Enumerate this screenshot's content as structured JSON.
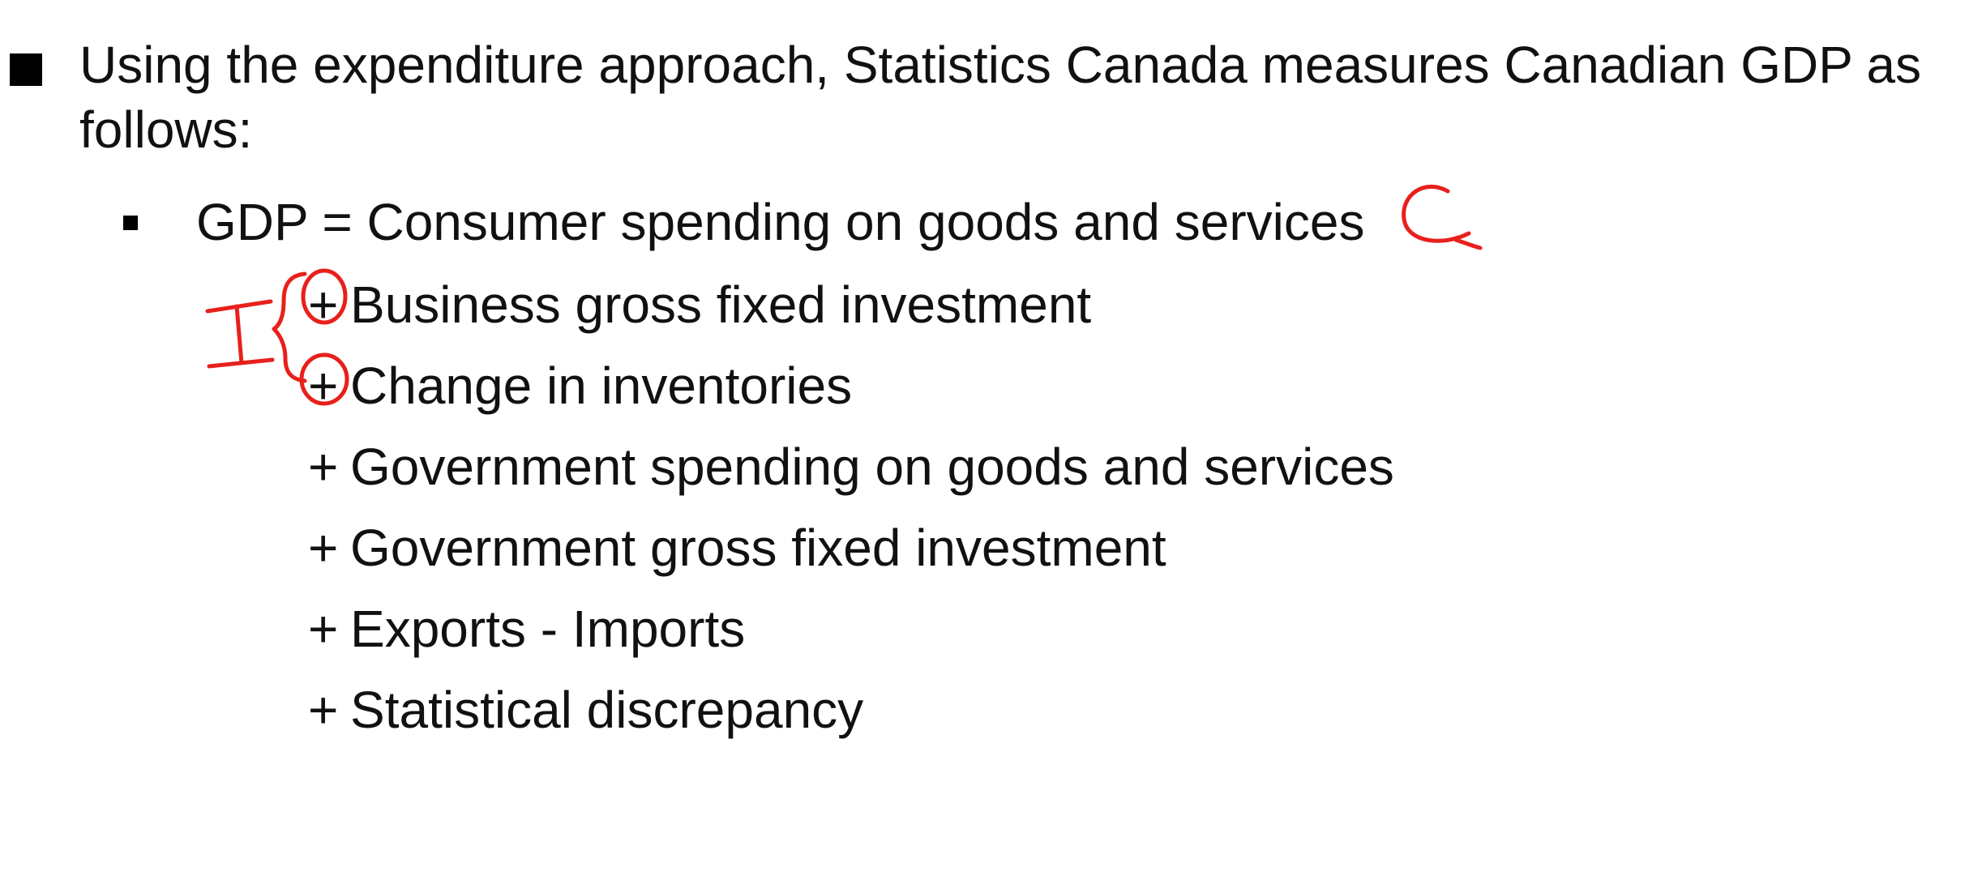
{
  "slide": {
    "main_bullet": "Using the expenditure approach, Statistics Canada measures Canadian GDP as follows:",
    "first_line": "GDP = Consumer spending on goods and services",
    "terms": [
      {
        "sign": "+",
        "label": "Business gross fixed investment"
      },
      {
        "sign": "+",
        "label": "Change in inventories"
      },
      {
        "sign": "+",
        "label": "Government spending on goods and services"
      },
      {
        "sign": "+",
        "label": "Government gross fixed investment"
      },
      {
        "sign": "+",
        "label": "Exports - Imports"
      },
      {
        "sign": "+",
        "label": "Statistical discrepancy"
      }
    ]
  },
  "annotations": {
    "c_mark": "C",
    "i_mark": "I",
    "ink_color": "#e8201c"
  }
}
